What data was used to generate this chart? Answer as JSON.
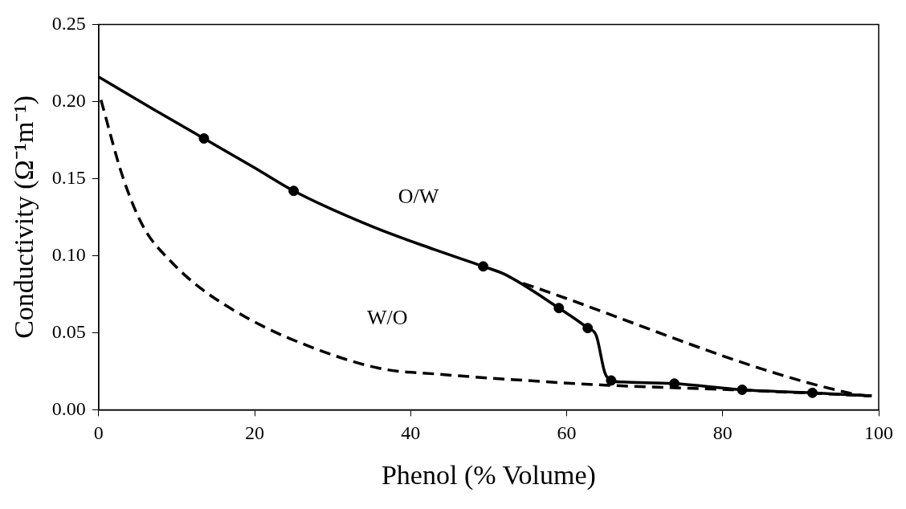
{
  "chart_data": {
    "type": "line",
    "xlabel": "Phenol (% Volume)",
    "ylabel": "Conductivity (Ω⁻¹m⁻¹)",
    "xlim": [
      0,
      100
    ],
    "ylim": [
      0,
      0.25
    ],
    "xticks": [
      0,
      20,
      40,
      60,
      80,
      100
    ],
    "yticks": [
      {
        "value": 0,
        "label": "0.00"
      },
      {
        "value": 0.05,
        "label": "0.05"
      },
      {
        "value": 0.1,
        "label": "0.10"
      },
      {
        "value": 0.15,
        "label": "0.15"
      },
      {
        "value": 0.2,
        "label": "0.20"
      },
      {
        "value": 0.25,
        "label": "0.25"
      }
    ],
    "grid": false,
    "legend": false,
    "annotations": [
      "O/W",
      "W/O"
    ],
    "series": [
      {
        "color": "#000000",
        "line_style": "solid",
        "marker": "none",
        "x": [
          0,
          7,
          13.5,
          20,
          25,
          35,
          43,
          49.3,
          52,
          59,
          62.7,
          63.8,
          64.9,
          65.7,
          67.2,
          73.8,
          82.5,
          91.5,
          99.1
        ],
        "values": [
          0.216,
          0.195,
          0.176,
          0.157,
          0.142,
          0.119,
          0.104,
          0.093,
          0.088,
          0.066,
          0.053,
          0.048,
          0.024,
          0.019,
          0.018,
          0.017,
          0.013,
          0.011,
          0.009
        ]
      },
      {
        "type": "scatter",
        "color": "#000000",
        "marker": "circle",
        "x": [
          13.5,
          25,
          49.3,
          59,
          62.7,
          65.7,
          73.8,
          82.5,
          91.5
        ],
        "values": [
          0.176,
          0.142,
          0.093,
          0.066,
          0.053,
          0.019,
          0.017,
          0.013,
          0.011
        ]
      },
      {
        "color": "#000000",
        "line_style": "dashed",
        "marker": "none",
        "x": [
          0.3,
          3.1,
          5.7,
          9.5,
          13.3,
          18.9,
          24.6,
          35.9,
          43.8,
          54.8,
          64.9,
          81.1,
          99.1
        ],
        "values": [
          0.201,
          0.151,
          0.119,
          0.095,
          0.078,
          0.06,
          0.046,
          0.027,
          0.023,
          0.019,
          0.016,
          0.013,
          0.009
        ]
      },
      {
        "color": "#000000",
        "line_style": "dashed",
        "marker": "none",
        "x": [
          54.4,
          97,
          99.1
        ],
        "values": [
          0.082,
          0.01,
          0.009
        ]
      }
    ]
  }
}
